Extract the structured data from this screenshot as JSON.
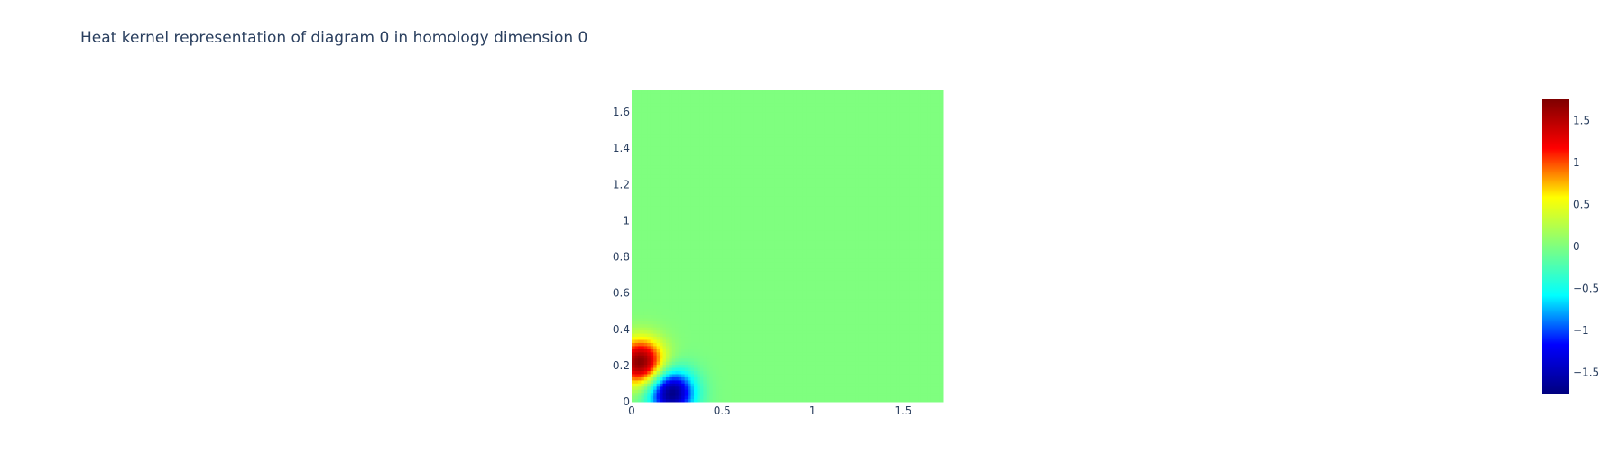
{
  "chart_data": {
    "type": "heatmap",
    "title": "Heat kernel representation of diagram 0 in homology dimension 0",
    "xlabel": "",
    "ylabel": "",
    "xlim": [
      0,
      1.72
    ],
    "ylim": [
      0,
      1.72
    ],
    "x_ticks": [
      0,
      0.5,
      1,
      1.5
    ],
    "x_tick_labels": [
      "0",
      "0.5",
      "1",
      "1.5"
    ],
    "y_ticks": [
      0,
      0.2,
      0.4,
      0.6,
      0.8,
      1,
      1.2,
      1.4,
      1.6
    ],
    "y_tick_labels": [
      "0",
      "0.2",
      "0.4",
      "0.6",
      "0.8",
      "1",
      "1.2",
      "1.4",
      "1.6"
    ],
    "grid_size": 100,
    "colorscale": "jet",
    "colorscale_stops": [
      "#00007f",
      "#0000ff",
      "#00ffff",
      "#7fff7f",
      "#ffff00",
      "#ff0000",
      "#7f0000"
    ],
    "zlim": [
      -1.75,
      1.75
    ],
    "colorbar": {
      "ticks": [
        1.5,
        1,
        0.5,
        0,
        -0.5,
        -1,
        -1.5
      ],
      "tick_labels": [
        "1.5",
        "1",
        "0.5",
        "0",
        "−0.5",
        "−1",
        "−1.5"
      ]
    },
    "kernel": {
      "points": [
        {
          "birth": 0.05,
          "death": 0.22
        }
      ],
      "sigma": 0.09,
      "peak": 1.75
    }
  }
}
